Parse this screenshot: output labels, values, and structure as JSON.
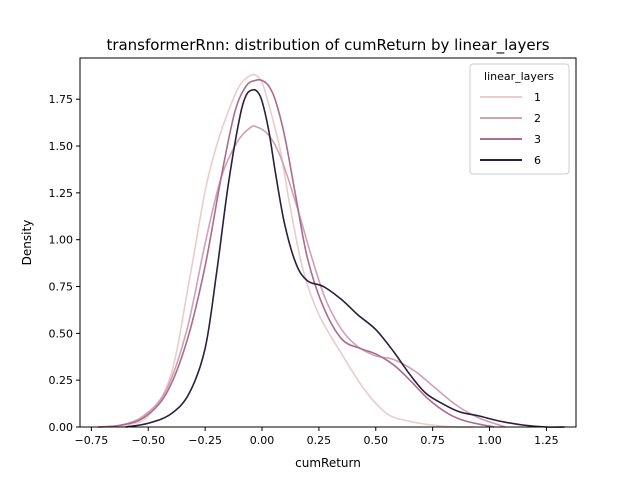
{
  "chart_data": {
    "type": "line",
    "title": "transformerRnn: distribution of cumReturn by linear_layers",
    "xlabel": "cumReturn",
    "ylabel": "Density",
    "xlim": [
      -0.8,
      1.38
    ],
    "ylim": [
      0.0,
      1.97
    ],
    "xticks": [
      "−0.75",
      "−0.50",
      "−0.25",
      "0.00",
      "0.25",
      "0.50",
      "0.75",
      "1.00",
      "1.25"
    ],
    "yticks": [
      "0.00",
      "0.25",
      "0.50",
      "0.75",
      "1.00",
      "1.25",
      "1.50",
      "1.75"
    ],
    "grid": false,
    "legend": {
      "title": "linear_layers",
      "position": "top-right"
    },
    "series": [
      {
        "name": "1",
        "color": "#ebcccb",
        "x": [
          -0.68,
          -0.6,
          -0.5,
          -0.4,
          -0.32,
          -0.25,
          -0.2,
          -0.15,
          -0.1,
          -0.06,
          -0.03,
          0.0,
          0.03,
          0.08,
          0.12,
          0.18,
          0.25,
          0.35,
          0.45,
          0.55,
          0.65,
          0.75,
          0.85,
          0.93
        ],
        "y": [
          0.0,
          0.01,
          0.06,
          0.28,
          0.78,
          1.26,
          1.5,
          1.68,
          1.82,
          1.87,
          1.88,
          1.84,
          1.72,
          1.48,
          1.2,
          0.84,
          0.6,
          0.39,
          0.2,
          0.07,
          0.03,
          0.01,
          0.0,
          0.0
        ]
      },
      {
        "name": "2",
        "color": "#d0a0b4",
        "x": [
          -0.72,
          -0.62,
          -0.52,
          -0.42,
          -0.33,
          -0.25,
          -0.18,
          -0.11,
          -0.05,
          -0.02,
          0.02,
          0.06,
          0.1,
          0.16,
          0.22,
          0.28,
          0.35,
          0.42,
          0.5,
          0.58,
          0.67,
          0.75,
          0.85,
          0.95,
          1.07
        ],
        "y": [
          0.0,
          0.01,
          0.06,
          0.2,
          0.52,
          0.98,
          1.33,
          1.52,
          1.6,
          1.6,
          1.57,
          1.5,
          1.38,
          1.15,
          0.9,
          0.68,
          0.52,
          0.43,
          0.38,
          0.36,
          0.3,
          0.22,
          0.12,
          0.05,
          0.0
        ]
      },
      {
        "name": "3",
        "color": "#ac6c8e",
        "x": [
          -0.72,
          -0.62,
          -0.52,
          -0.42,
          -0.33,
          -0.25,
          -0.18,
          -0.12,
          -0.07,
          -0.03,
          0.0,
          0.03,
          0.06,
          0.1,
          0.15,
          0.2,
          0.27,
          0.35,
          0.43,
          0.5,
          0.58,
          0.65,
          0.73,
          0.82,
          0.9,
          1.02
        ],
        "y": [
          0.0,
          0.01,
          0.05,
          0.18,
          0.46,
          0.86,
          1.33,
          1.68,
          1.82,
          1.85,
          1.85,
          1.82,
          1.74,
          1.55,
          1.22,
          0.9,
          0.64,
          0.47,
          0.42,
          0.39,
          0.33,
          0.25,
          0.15,
          0.07,
          0.03,
          0.0
        ]
      },
      {
        "name": "6",
        "color": "#2d1e3e",
        "x": [
          -0.6,
          -0.5,
          -0.4,
          -0.32,
          -0.25,
          -0.2,
          -0.15,
          -0.1,
          -0.07,
          -0.04,
          -0.02,
          0.0,
          0.03,
          0.06,
          0.1,
          0.15,
          0.2,
          0.27,
          0.35,
          0.42,
          0.5,
          0.58,
          0.65,
          0.72,
          0.8,
          0.87,
          0.95,
          1.05,
          1.15,
          1.25,
          1.33
        ],
        "y": [
          0.0,
          0.02,
          0.07,
          0.18,
          0.42,
          0.82,
          1.28,
          1.64,
          1.77,
          1.8,
          1.79,
          1.74,
          1.58,
          1.35,
          1.08,
          0.87,
          0.78,
          0.75,
          0.68,
          0.6,
          0.52,
          0.4,
          0.28,
          0.18,
          0.12,
          0.08,
          0.06,
          0.03,
          0.01,
          0.0,
          0.0
        ]
      }
    ]
  }
}
